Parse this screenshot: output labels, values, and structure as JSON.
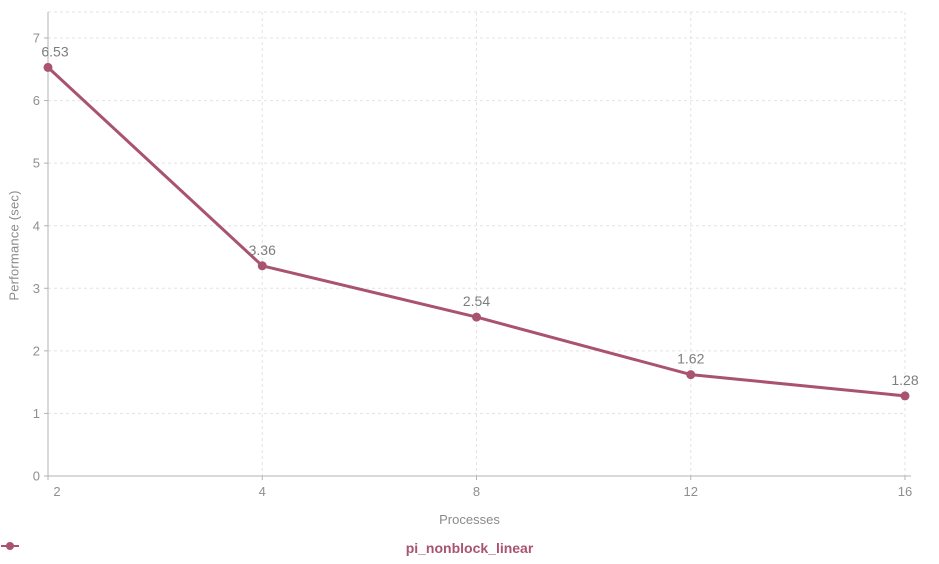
{
  "chart_data": {
    "type": "line",
    "title": "",
    "xlabel": "Processes",
    "ylabel": "Performance (sec)",
    "x_axis_type": "category",
    "categories": [
      "2",
      "4",
      "8",
      "12",
      "16"
    ],
    "series": [
      {
        "name": "pi_nonblock_linear",
        "values": [
          6.53,
          3.36,
          2.54,
          1.62,
          1.28
        ],
        "color": "#a9536f"
      }
    ],
    "data_labels": [
      "6.53",
      "3.36",
      "2.54",
      "1.62",
      "1.28"
    ],
    "ylim": [
      0,
      7
    ],
    "y_ticks": [
      0,
      1,
      2,
      3,
      4,
      5,
      6,
      7
    ],
    "grid": "dashed",
    "legend_position": "bottom"
  },
  "legend": {
    "items": [
      {
        "label": "pi_nonblock_linear",
        "color": "#a9536f"
      }
    ]
  },
  "colors": {
    "grid": "#e3e3e3",
    "axis": "#b3b3b3",
    "tick_text": "#8f8f8f",
    "label_text": "#7d7d7d",
    "series": "#a9536f"
  }
}
